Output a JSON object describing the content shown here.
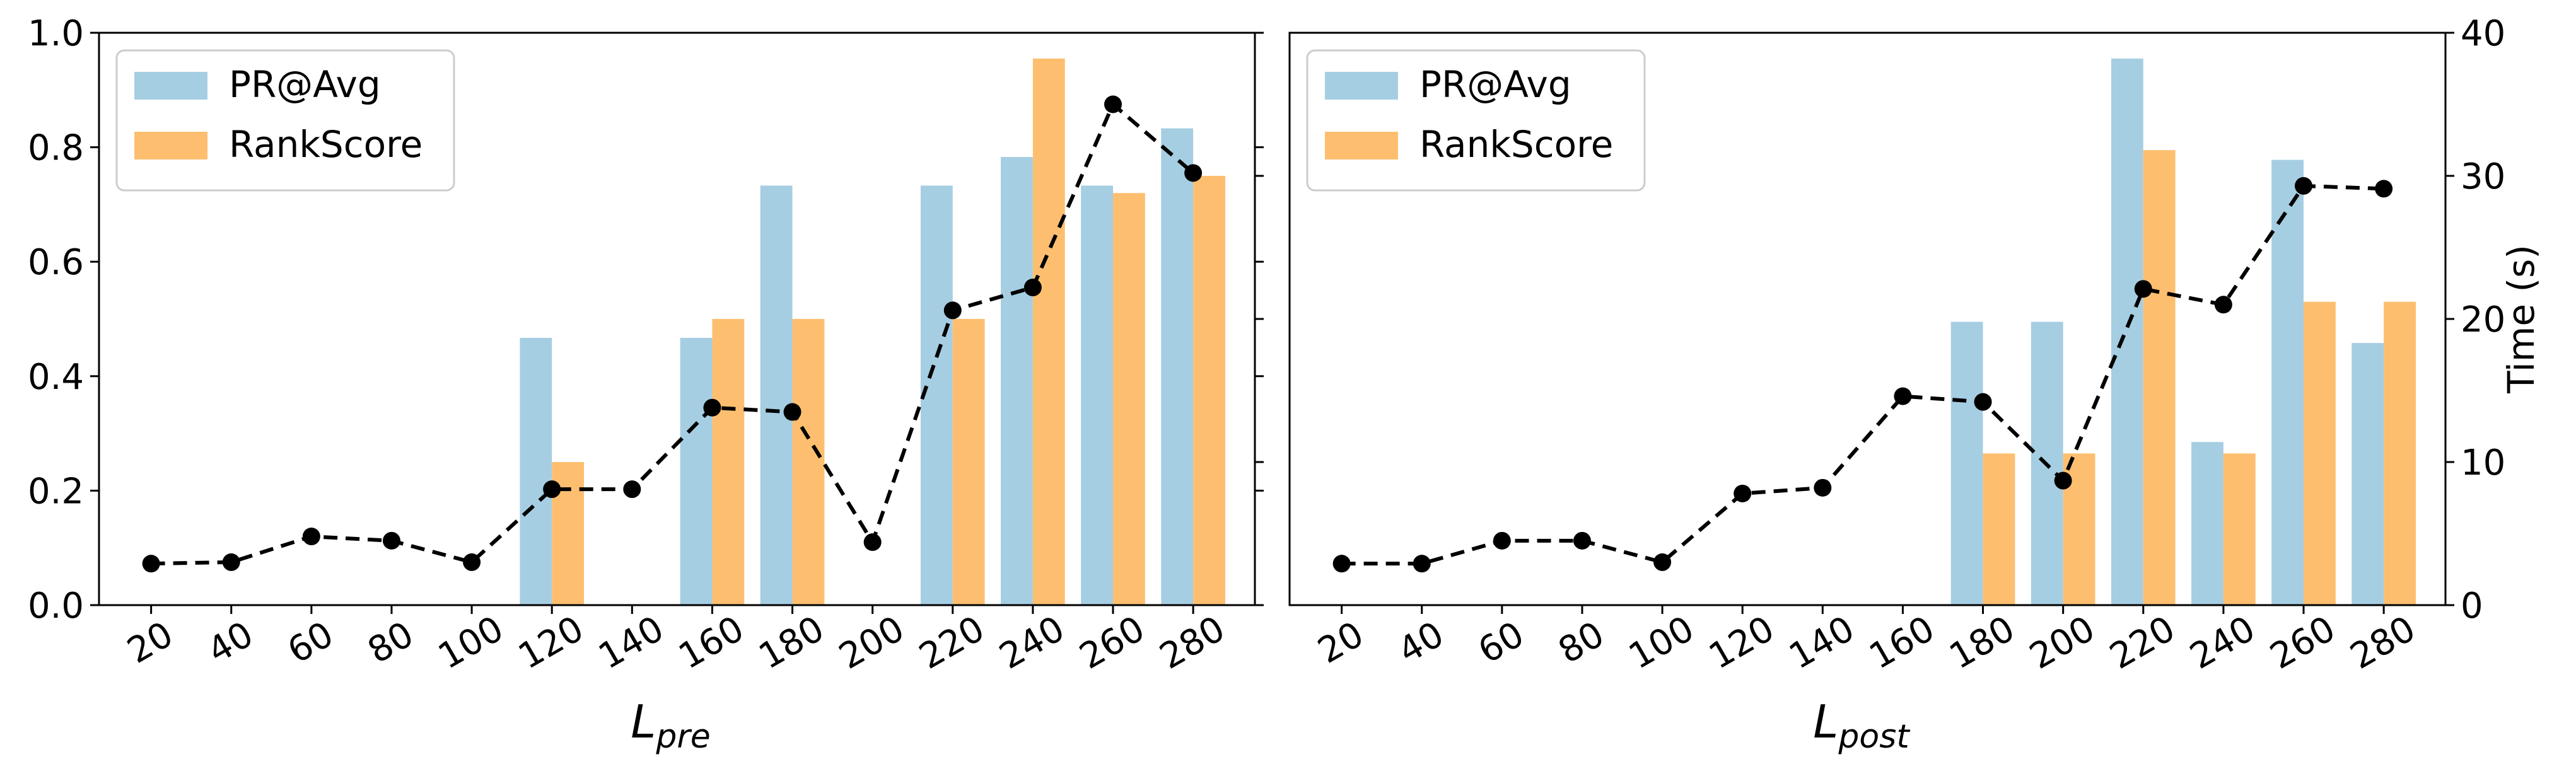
{
  "chart_data": [
    {
      "type": "bar",
      "xlabel": "L",
      "xlabel_sub": "pre",
      "categories": [
        "20",
        "40",
        "60",
        "80",
        "100",
        "120",
        "140",
        "160",
        "180",
        "200",
        "220",
        "240",
        "260",
        "280"
      ],
      "ylim": [
        0,
        1.0
      ],
      "yticks": [
        "0.0",
        "0.2",
        "0.4",
        "0.6",
        "0.8",
        "1.0"
      ],
      "y2lim": [
        0,
        40
      ],
      "legend": "top-left",
      "series": [
        {
          "name": "PR@Avg",
          "color": "#a6cee3",
          "values": [
            0,
            0,
            0,
            0,
            0,
            0.467,
            0,
            0.467,
            0.733,
            0,
            0.733,
            0.783,
            0.733,
            0.833
          ]
        },
        {
          "name": "RankScore",
          "color": "#fdbf6f",
          "values": [
            0,
            0,
            0,
            0,
            0,
            0.25,
            0,
            0.5,
            0.5,
            0,
            0.5,
            0.955,
            0.72,
            0.75
          ]
        }
      ],
      "time_line": {
        "color": "#000000",
        "values": [
          2.9,
          3.0,
          4.8,
          4.5,
          3.0,
          8.1,
          8.1,
          13.8,
          13.5,
          4.4,
          20.6,
          22.2,
          35.0,
          30.2
        ]
      }
    },
    {
      "type": "bar",
      "xlabel": "L",
      "xlabel_sub": "post",
      "categories": [
        "20",
        "40",
        "60",
        "80",
        "100",
        "120",
        "140",
        "160",
        "180",
        "200",
        "220",
        "240",
        "260",
        "280"
      ],
      "ylim": [
        0,
        1.0
      ],
      "y2lim": [
        0,
        40
      ],
      "y2label": "Time (s)",
      "y2ticks": [
        "0",
        "10",
        "20",
        "30",
        "40"
      ],
      "legend": "top-left",
      "series": [
        {
          "name": "PR@Avg",
          "color": "#a6cee3",
          "values": [
            0,
            0,
            0,
            0,
            0,
            0,
            0,
            0,
            0.495,
            0.495,
            0.955,
            0.285,
            0.778,
            0.458
          ]
        },
        {
          "name": "RankScore",
          "color": "#fdbf6f",
          "values": [
            0,
            0,
            0,
            0,
            0,
            0,
            0,
            0,
            0.265,
            0.265,
            0.795,
            0.265,
            0.53,
            0.53
          ]
        }
      ],
      "time_line": {
        "color": "#000000",
        "values": [
          2.9,
          2.9,
          4.5,
          4.5,
          3.0,
          7.8,
          8.2,
          14.6,
          14.2,
          8.7,
          22.1,
          21.0,
          29.3,
          29.1
        ]
      }
    }
  ]
}
